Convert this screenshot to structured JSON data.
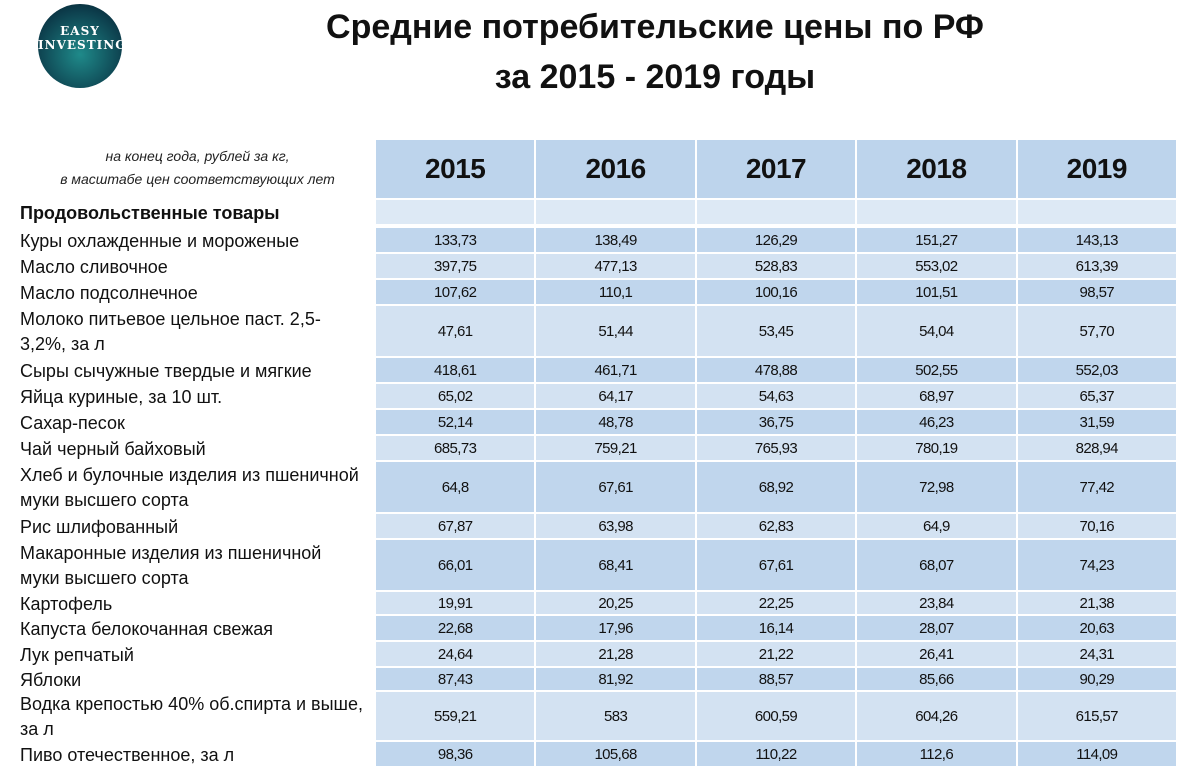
{
  "header": {
    "title_line1": "Средние потребительские цены по РФ",
    "title_line2": "за 2015 - 2019 годы"
  },
  "logo": {
    "line1": "EASY",
    "line2": "INVESTING"
  },
  "table": {
    "note_line1": "на конец года, рублей за кг,",
    "note_line2": "в масштабе цен соответствующих лет",
    "columns": [
      "2015",
      "2016",
      "2017",
      "2018",
      "2019"
    ],
    "section": "Продовольственные товары",
    "rows": [
      {
        "label": "Куры охлажденные и мороженые",
        "values": [
          "133,73",
          "138,49",
          "126,29",
          "151,27",
          "143,13"
        ]
      },
      {
        "label": "Масло сливочное",
        "values": [
          "397,75",
          "477,13",
          "528,83",
          "553,02",
          "613,39"
        ]
      },
      {
        "label": "Масло подсолнечное",
        "values": [
          "107,62",
          "110,1",
          "100,16",
          "101,51",
          "98,57"
        ]
      },
      {
        "label": "Молоко питьевое цельное  паст. 2,5-3,2%, за л",
        "values": [
          "47,61",
          "51,44",
          "53,45",
          "54,04",
          "57,70"
        ]
      },
      {
        "label": "Сыры сычужные твердые и мягкие",
        "values": [
          "418,61",
          "461,71",
          "478,88",
          "502,55",
          "552,03"
        ]
      },
      {
        "label": "Яйца куриные, за 10 шт.",
        "values": [
          "65,02",
          "64,17",
          "54,63",
          "68,97",
          "65,37"
        ]
      },
      {
        "label": "Сахар-песок",
        "values": [
          "52,14",
          "48,78",
          "36,75",
          "46,23",
          "31,59"
        ]
      },
      {
        "label": "Чай черный байховый",
        "values": [
          "685,73",
          "759,21",
          "765,93",
          "780,19",
          "828,94"
        ]
      },
      {
        "label": "Хлеб и булочные изделия из пшеничной муки высшего сорта",
        "values": [
          "64,8",
          "67,61",
          "68,92",
          "72,98",
          "77,42"
        ]
      },
      {
        "label": "Рис шлифованный",
        "values": [
          "67,87",
          "63,98",
          "62,83",
          "64,9",
          "70,16"
        ]
      },
      {
        "label": "Макаронные изделия из пшеничной муки высшего сорта",
        "values": [
          "66,01",
          "68,41",
          "67,61",
          "68,07",
          "74,23"
        ]
      },
      {
        "label": "Картофель",
        "values": [
          "19,91",
          "20,25",
          "22,25",
          "23,84",
          "21,38"
        ]
      },
      {
        "label": "Капуста белокочанная свежая",
        "values": [
          "22,68",
          "17,96",
          "16,14",
          "28,07",
          "20,63"
        ]
      },
      {
        "label": "Лук репчатый",
        "values": [
          "24,64",
          "21,28",
          "21,22",
          "26,41",
          "24,31"
        ]
      },
      {
        "label": "Яблоки",
        "values": [
          "87,43",
          "81,92",
          "88,57",
          "85,66",
          "90,29"
        ]
      },
      {
        "label": "Водка крепостью 40% об.спирта и выше, за л",
        "values": [
          "559,21",
          "583",
          "600,59",
          "604,26",
          "615,57"
        ]
      },
      {
        "label": "Пиво отечественное, за л",
        "values": [
          "98,36",
          "105,68",
          "110,22",
          "112,6",
          "114,09"
        ]
      }
    ]
  }
}
